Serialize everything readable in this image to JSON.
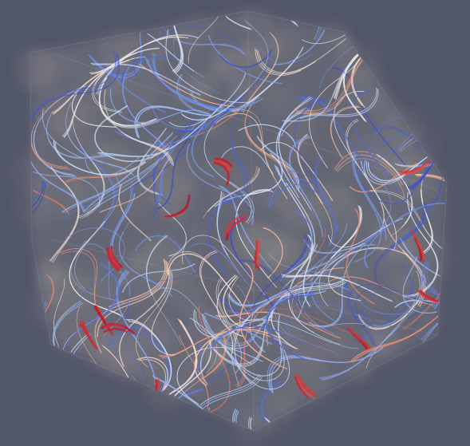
{
  "scene": {
    "kind": "3D streamline volume rendering",
    "background_color": "#525669",
    "volume_haze_color": "#b8b0a4",
    "colormap": [
      "#3b4cc0",
      "#6a8de6",
      "#b9d0f9",
      "#f2f2f2",
      "#f5b89b",
      "#e0654f",
      "#b40426"
    ],
    "colormap_name": "cool-to-warm",
    "streamline_count_approx": 260,
    "high_value_clusters": 14
  }
}
